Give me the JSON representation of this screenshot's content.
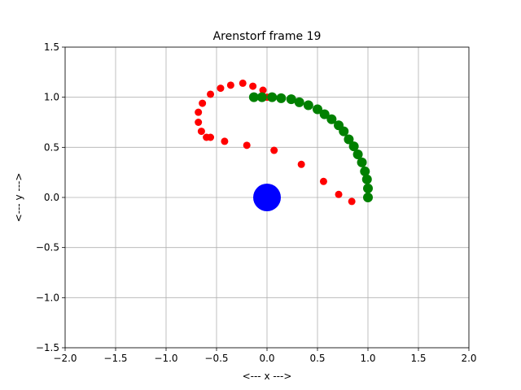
{
  "chart_data": {
    "type": "scatter",
    "title": "Arenstorf frame 19",
    "xlabel": "<---  x  --->",
    "ylabel": "<---  y  --->",
    "xlim": [
      -2.0,
      2.0
    ],
    "ylim": [
      -1.5,
      1.5
    ],
    "grid": true,
    "x_ticks": [
      -2.0,
      -1.5,
      -1.0,
      -0.5,
      0.0,
      0.5,
      1.0,
      1.5,
      2.0
    ],
    "y_ticks": [
      -1.5,
      -1.0,
      -0.5,
      0.0,
      0.5,
      1.0,
      1.5
    ],
    "x_tick_labels": [
      "−2.0",
      "−1.5",
      "−1.0",
      "−0.5",
      "0.0",
      "0.5",
      "1.0",
      "1.5",
      "2.0"
    ],
    "y_tick_labels": [
      "−1.5",
      "−1.0",
      "−0.5",
      "0.0",
      "0.5",
      "1.0",
      "1.5"
    ],
    "series": [
      {
        "color": "#ff0000",
        "marker": "small",
        "x": [
          -0.6,
          -0.56,
          -0.42,
          -0.2,
          0.07,
          0.34,
          0.56,
          0.71,
          0.84,
          1.0,
          -0.65,
          -0.68,
          -0.68,
          -0.64,
          -0.56,
          -0.46,
          -0.36,
          -0.24,
          -0.14,
          -0.04,
          0.0
        ],
        "y": [
          0.6,
          0.6,
          0.56,
          0.52,
          0.47,
          0.33,
          0.16,
          0.03,
          -0.04,
          0.0,
          0.66,
          0.75,
          0.85,
          0.94,
          1.03,
          1.09,
          1.12,
          1.14,
          1.11,
          1.07,
          1.0
        ]
      },
      {
        "color": "#008000",
        "marker": "large",
        "x": [
          -0.13,
          -0.05,
          0.05,
          0.14,
          0.24,
          0.32,
          0.41,
          0.5,
          0.57,
          0.64,
          0.71,
          0.76,
          0.81,
          0.86,
          0.9,
          0.94,
          0.97,
          0.99,
          1.0,
          1.0
        ],
        "y": [
          1.0,
          1.0,
          1.0,
          0.99,
          0.98,
          0.95,
          0.92,
          0.88,
          0.83,
          0.78,
          0.72,
          0.66,
          0.58,
          0.51,
          0.43,
          0.35,
          0.26,
          0.18,
          0.09,
          0.0
        ]
      },
      {
        "color": "#0000ff",
        "marker": "body",
        "x": [
          0.0
        ],
        "y": [
          0.0
        ]
      }
    ]
  }
}
